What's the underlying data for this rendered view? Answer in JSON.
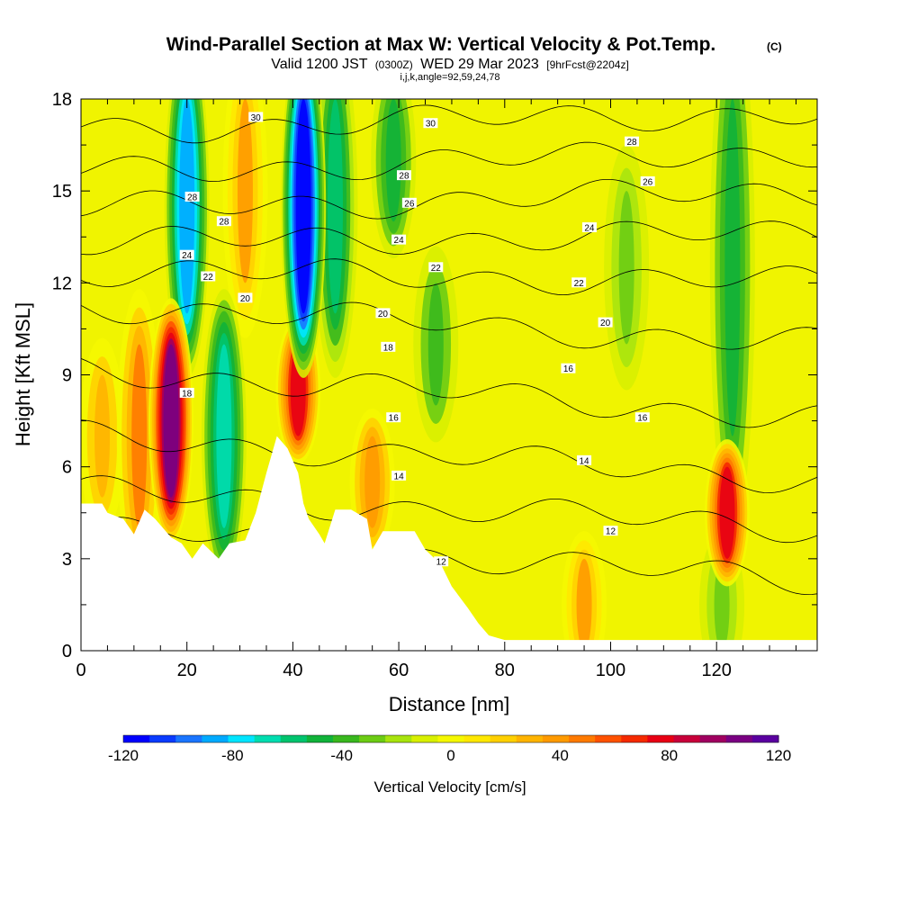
{
  "title": "Wind-Parallel Section at Max W: Vertical Velocity & Pot.Temp.",
  "copyright_mark": "(C)",
  "subtitle_prefix": "Valid 1200 JST",
  "subtitle_utc": "(0300Z)",
  "subtitle_date": "WED 29 Mar 2023",
  "subtitle_fcst": "[9hrFcst@2204z]",
  "section_indices": "i,j,k,angle=92,59,24,78",
  "chart_data": {
    "type": "heatmap",
    "xlabel": "Distance [nm]",
    "ylabel": "Height [Kft MSL]",
    "xlim": [
      0,
      139
    ],
    "ylim": [
      0,
      18
    ],
    "x_ticks": [
      0,
      20,
      40,
      60,
      80,
      100,
      120
    ],
    "y_ticks": [
      0,
      3,
      6,
      9,
      12,
      15,
      18
    ],
    "colorbar": {
      "title": "Vertical Velocity [cm/s]",
      "min": -120,
      "max": 120,
      "step": 10,
      "tick_values": [
        -120,
        -80,
        -40,
        0,
        40,
        80,
        120
      ],
      "tick_labels": [
        "-120",
        "-80",
        "-40",
        "0",
        "40",
        "80",
        "120"
      ],
      "colors": [
        "#0000ff",
        "#0a3bff",
        "#1a75ff",
        "#00aaff",
        "#00e5ff",
        "#00ddb0",
        "#00c46e",
        "#11b33a",
        "#39b81e",
        "#6ccc14",
        "#a8e40e",
        "#d8f000",
        "#f5f800",
        "#ffe800",
        "#ffd000",
        "#ffb400",
        "#ff9a00",
        "#ff7a00",
        "#ff5200",
        "#f52a00",
        "#e80014",
        "#c8003a",
        "#a00060",
        "#7a0082",
        "#5a00a0"
      ]
    },
    "vertical_velocity_features": [
      {
        "x": 4,
        "z_range": [
          5,
          9
        ],
        "w": 35
      },
      {
        "x": 11,
        "z_range": [
          4,
          10
        ],
        "w": 50
      },
      {
        "x": 17,
        "z_range": [
          5,
          10
        ],
        "w": 115
      },
      {
        "x": 20,
        "z_range": [
          11,
          18
        ],
        "w": -90
      },
      {
        "x": 27,
        "z_range": [
          4,
          10
        ],
        "w": -70
      },
      {
        "x": 31,
        "z_range": [
          12,
          18
        ],
        "w": 40
      },
      {
        "x": 41,
        "z_range": [
          7,
          10
        ],
        "w": 85
      },
      {
        "x": 42,
        "z_range": [
          11,
          18
        ],
        "w": -120
      },
      {
        "x": 48,
        "z_range": [
          11,
          18
        ],
        "w": -55
      },
      {
        "x": 55,
        "z_range": [
          4,
          7
        ],
        "w": 45
      },
      {
        "x": 59,
        "z_range": [
          14,
          18
        ],
        "w": -45
      },
      {
        "x": 67,
        "z_range": [
          8,
          12
        ],
        "w": -35
      },
      {
        "x": 95,
        "z_range": [
          0,
          3
        ],
        "w": 40
      },
      {
        "x": 103,
        "z_range": [
          10,
          15
        ],
        "w": -30
      },
      {
        "x": 121,
        "z_range": [
          0,
          3
        ],
        "w": -30
      },
      {
        "x": 122,
        "z_range": [
          3,
          6
        ],
        "w": 85
      },
      {
        "x": 123,
        "z_range": [
          7,
          18
        ],
        "w": -50
      }
    ],
    "terrain": [
      {
        "x": 0,
        "z": 4.8
      },
      {
        "x": 4,
        "z": 4.8
      },
      {
        "x": 5,
        "z": 4.5
      },
      {
        "x": 8,
        "z": 4.3
      },
      {
        "x": 10,
        "z": 3.8
      },
      {
        "x": 12,
        "z": 4.6
      },
      {
        "x": 14,
        "z": 4.3
      },
      {
        "x": 17,
        "z": 3.7
      },
      {
        "x": 19,
        "z": 3.5
      },
      {
        "x": 21,
        "z": 3.0
      },
      {
        "x": 23,
        "z": 3.5
      },
      {
        "x": 26,
        "z": 3.0
      },
      {
        "x": 28,
        "z": 3.5
      },
      {
        "x": 31,
        "z": 3.6
      },
      {
        "x": 33,
        "z": 4.5
      },
      {
        "x": 35,
        "z": 5.8
      },
      {
        "x": 37,
        "z": 7.0
      },
      {
        "x": 39,
        "z": 6.6
      },
      {
        "x": 41,
        "z": 5.8
      },
      {
        "x": 42,
        "z": 4.8
      },
      {
        "x": 43,
        "z": 4.3
      },
      {
        "x": 45,
        "z": 3.8
      },
      {
        "x": 46,
        "z": 3.5
      },
      {
        "x": 48,
        "z": 4.6
      },
      {
        "x": 51,
        "z": 4.6
      },
      {
        "x": 54,
        "z": 4.3
      },
      {
        "x": 55,
        "z": 3.3
      },
      {
        "x": 57,
        "z": 3.9
      },
      {
        "x": 59,
        "z": 3.9
      },
      {
        "x": 63,
        "z": 3.9
      },
      {
        "x": 65,
        "z": 3.3
      },
      {
        "x": 68,
        "z": 2.8
      },
      {
        "x": 70,
        "z": 2.1
      },
      {
        "x": 73,
        "z": 1.4
      },
      {
        "x": 75,
        "z": 0.9
      },
      {
        "x": 77,
        "z": 0.5
      },
      {
        "x": 80,
        "z": 0.35
      },
      {
        "x": 139,
        "z": 0.35
      }
    ],
    "theta_contours": [
      {
        "value": 12,
        "z_left": 4.0,
        "z_right": 2.2
      },
      {
        "value": 14,
        "z_left": 5.2,
        "z_right": 4.0
      },
      {
        "value": 16,
        "z_left": 7.0,
        "z_right": 5.6
      },
      {
        "value": 18,
        "z_left": 9.2,
        "z_right": 7.6
      },
      {
        "value": 20,
        "z_left": 11.3,
        "z_right": 10.0
      },
      {
        "value": 22,
        "z_left": 12.4,
        "z_right": 12.0
      },
      {
        "value": 24,
        "z_left": 13.3,
        "z_right": 13.6
      },
      {
        "value": 26,
        "z_left": 14.4,
        "z_right": 15.0
      },
      {
        "value": 28,
        "z_left": 15.6,
        "z_right": 16.3
      },
      {
        "value": 30,
        "z_left": 17.0,
        "z_right": 17.6
      }
    ],
    "contour_labels": [
      {
        "text": "30",
        "x": 33,
        "z": 17.4
      },
      {
        "text": "30",
        "x": 66,
        "z": 17.2
      },
      {
        "text": "28",
        "x": 104,
        "z": 16.6
      },
      {
        "text": "26",
        "x": 107,
        "z": 15.3
      },
      {
        "text": "28",
        "x": 21,
        "z": 14.8
      },
      {
        "text": "28",
        "x": 27,
        "z": 14.0
      },
      {
        "text": "28",
        "x": 61,
        "z": 15.5
      },
      {
        "text": "26",
        "x": 62,
        "z": 14.6
      },
      {
        "text": "24",
        "x": 60,
        "z": 13.4
      },
      {
        "text": "24",
        "x": 96,
        "z": 13.8
      },
      {
        "text": "24",
        "x": 20,
        "z": 12.9
      },
      {
        "text": "22",
        "x": 24,
        "z": 12.2
      },
      {
        "text": "22",
        "x": 67,
        "z": 12.5
      },
      {
        "text": "22",
        "x": 94,
        "z": 12.0
      },
      {
        "text": "20",
        "x": 31,
        "z": 11.5
      },
      {
        "text": "20",
        "x": 57,
        "z": 11.0
      },
      {
        "text": "20",
        "x": 99,
        "z": 10.7
      },
      {
        "text": "18",
        "x": 58,
        "z": 9.9
      },
      {
        "text": "18",
        "x": 20,
        "z": 8.4
      },
      {
        "text": "16",
        "x": 92,
        "z": 9.2
      },
      {
        "text": "16",
        "x": 59,
        "z": 7.6
      },
      {
        "text": "16",
        "x": 106,
        "z": 7.6
      },
      {
        "text": "14",
        "x": 95,
        "z": 6.2
      },
      {
        "text": "14",
        "x": 60,
        "z": 5.7
      },
      {
        "text": "12",
        "x": 100,
        "z": 3.9
      },
      {
        "text": "12",
        "x": 68,
        "z": 2.9
      }
    ]
  }
}
